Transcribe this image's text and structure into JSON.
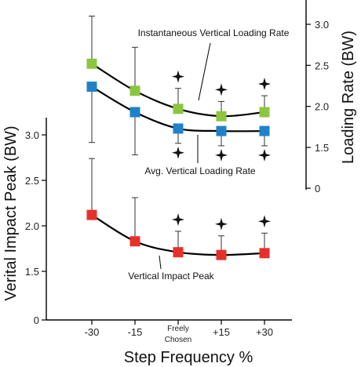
{
  "chart_data": {
    "type": "line",
    "xlabel": "Step Frequency %",
    "categories": [
      "-30",
      "-15",
      "Freely Chosen",
      "+15",
      "+30"
    ],
    "y_left": {
      "label": "Verital Impact Peak (BW)",
      "ticks": [
        "0",
        "1.5",
        "2.0",
        "2.5",
        "3.0"
      ],
      "tick_values": [
        0,
        1.5,
        2.0,
        2.5,
        3.0
      ]
    },
    "y_right": {
      "label": "Loading Rate (BW)",
      "ticks": [
        "0",
        "1.5",
        "2.0",
        "2.5",
        "3.0"
      ],
      "tick_values": [
        0,
        1.5,
        2.0,
        2.5,
        3.0
      ]
    },
    "series": [
      {
        "name": "Instantaneous Vertical Loading Rate",
        "axis": "right",
        "color": "#8cc63f",
        "values": [
          2.52,
          2.19,
          1.97,
          1.88,
          1.93
        ],
        "error_up": [
          0.58,
          0.53,
          0.25,
          0.18,
          0.2
        ],
        "significant": [
          false,
          false,
          true,
          true,
          true
        ]
      },
      {
        "name": "Avg. Vertical Loading Rate",
        "axis": "right",
        "color": "#1f82c9",
        "values": [
          2.24,
          1.93,
          1.73,
          1.7,
          1.7
        ],
        "error_down": [
          0.68,
          0.52,
          0.18,
          0.18,
          0.18
        ],
        "significant": [
          false,
          false,
          true,
          true,
          true
        ]
      },
      {
        "name": "Vertical Impact Peak",
        "axis": "left",
        "color": "#e8302a",
        "values": [
          2.12,
          1.83,
          1.71,
          1.68,
          1.7
        ],
        "error_up": [
          0.62,
          0.48,
          0.23,
          0.21,
          0.22
        ],
        "significant": [
          false,
          false,
          true,
          true,
          true
        ]
      }
    ]
  }
}
